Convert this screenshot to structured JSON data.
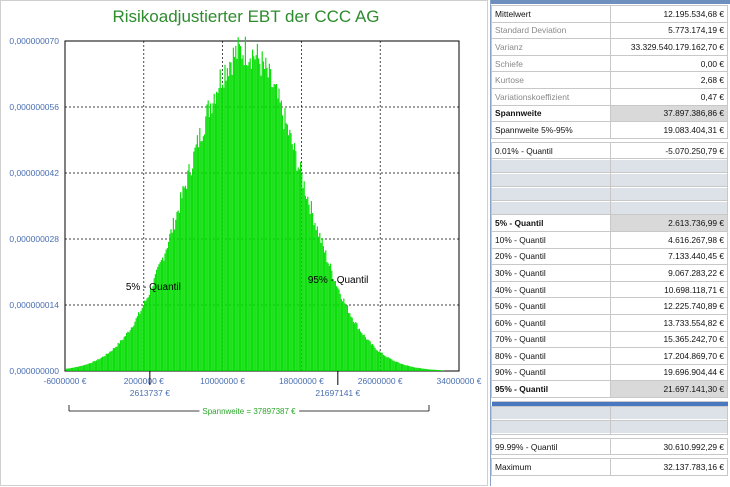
{
  "chart_data": {
    "type": "bar",
    "title": "Risikoadjustierter EBT der CCC AG",
    "xlabel": "",
    "ylabel": "",
    "ylim": [
      0,
      7e-08
    ],
    "xlim": [
      -6000000,
      34000000
    ],
    "y_ticks": [
      "0,000000070",
      "0,000000056",
      "0,000000042",
      "0,000000028",
      "0,000000014",
      "0,000000000"
    ],
    "y_tick_values": [
      7e-08,
      5.6e-08,
      4.2e-08,
      2.8e-08,
      1.4e-08,
      0
    ],
    "x_ticks": [
      "-6000000 €",
      "2000000 €",
      "10000000 €",
      "18000000 €",
      "26000000 €",
      "34000000 €"
    ],
    "x_tick_values": [
      -6000000,
      2000000,
      10000000,
      18000000,
      26000000,
      34000000
    ],
    "grid": true,
    "distribution": {
      "mean": 12195534.68,
      "sd": 5773174.19
    },
    "markers": [
      {
        "label": "5% - Quantil",
        "x": 2613737,
        "value_label": "2613737 €"
      },
      {
        "label": "95% - Quantil",
        "x": 21697141,
        "value_label": "21697141 €"
      }
    ],
    "range_label": "Spannweite = 37897387 €",
    "bar_color": "#00dd00"
  },
  "stats": [
    {
      "label": "Mittelwert",
      "value": "12.195.534,68 €",
      "style": ""
    },
    {
      "label": "Standard Deviation",
      "value": "5.773.174,19 €",
      "style": "muted"
    },
    {
      "label": "Varianz",
      "value": "33.329.540.179.162,70 €",
      "style": "muted"
    },
    {
      "label": "Schiefe",
      "value": "0,00 €",
      "style": "muted"
    },
    {
      "label": "Kurtose",
      "value": "2,68 €",
      "style": "muted"
    },
    {
      "label": "Variationskoeffizient",
      "value": "0,47 €",
      "style": "muted"
    },
    {
      "label": "Spannweite",
      "value": "37.897.386,86 €",
      "style": "bold hl"
    },
    {
      "label": "Spannweite 5%-95%",
      "value": "19.083.404,31 €",
      "style": ""
    },
    {
      "label": "0.01% - Quantil",
      "value": "-5.070.250,79 €",
      "style": ""
    },
    {
      "label": "5% - Quantil",
      "value": "2.613.736,99 €",
      "style": "bold hl"
    },
    {
      "label": "10% - Quantil",
      "value": "4.616.267,98 €",
      "style": ""
    },
    {
      "label": "20% - Quantil",
      "value": "7.133.440,45 €",
      "style": ""
    },
    {
      "label": "30% - Quantil",
      "value": "9.067.283,22 €",
      "style": ""
    },
    {
      "label": "40% - Quantil",
      "value": "10.698.118,71 €",
      "style": ""
    },
    {
      "label": "50% - Quantil",
      "value": "12.225.740,89 €",
      "style": ""
    },
    {
      "label": "60% - Quantil",
      "value": "13.733.554,82 €",
      "style": ""
    },
    {
      "label": "70% - Quantil",
      "value": "15.365.242,70 €",
      "style": ""
    },
    {
      "label": "80% - Quantil",
      "value": "17.204.869,70 €",
      "style": ""
    },
    {
      "label": "90% - Quantil",
      "value": "19.696.904,44 €",
      "style": ""
    },
    {
      "label": "95% - Quantil",
      "value": "21.697.141,30 €",
      "style": "bold hl"
    },
    {
      "label": "99.99% - Quantil",
      "value": "30.610.992,29 €",
      "style": ""
    },
    {
      "label": "Maximum",
      "value": "32.137.783,16 €",
      "style": ""
    }
  ]
}
